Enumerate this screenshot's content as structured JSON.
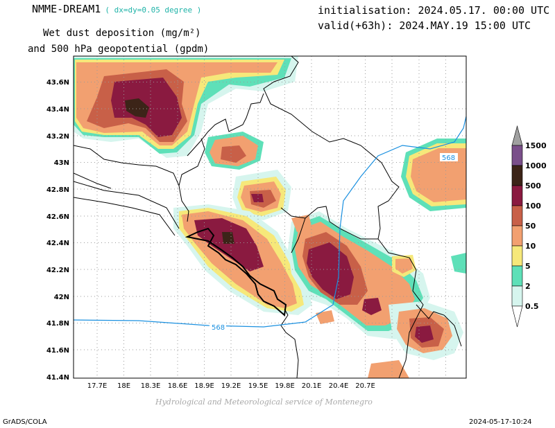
{
  "header": {
    "model": "NMME-DREAM1",
    "resolution": "( dx=dy=0.05 degree )",
    "title_line1": "Wet dust deposition (mg/m²)",
    "title_line2": "and 500 hPa geopotential (gpdm)",
    "initialisation": "initialisation: 2024.05.17. 00:00 UTC",
    "valid": "valid(+63h): 2024.MAY.19 15:00 UTC"
  },
  "map": {
    "lat_labels": [
      "43.6N",
      "43.4N",
      "43.2N",
      "43N",
      "42.8N",
      "42.6N",
      "42.4N",
      "42.2N",
      "42N",
      "41.8N",
      "41.6N",
      "41.4N"
    ],
    "lon_labels": [
      "17.7E",
      "18E",
      "18.3E",
      "18.6E",
      "18.9E",
      "19.2E",
      "19.5E",
      "19.8E",
      "20.1E",
      "20.4E",
      "20.7E"
    ],
    "contour_labels": [
      "568",
      "568"
    ],
    "legend": {
      "levels": [
        "0.5",
        "2",
        "5",
        "10",
        "50",
        "100",
        "500",
        "1000",
        "1500"
      ],
      "colors": [
        "#d6f5ee",
        "#5ee0b8",
        "#f6e87a",
        "#f2a070",
        "#c86048",
        "#8a1a40",
        "#3c2418",
        "#7a4f8a",
        "#a0a0a0"
      ]
    }
  },
  "footer": {
    "credit": "Hydrological and Meteorological service of Montenegro",
    "software": "GrADS/COLA",
    "timestamp": "2024-05-17-10:24"
  }
}
